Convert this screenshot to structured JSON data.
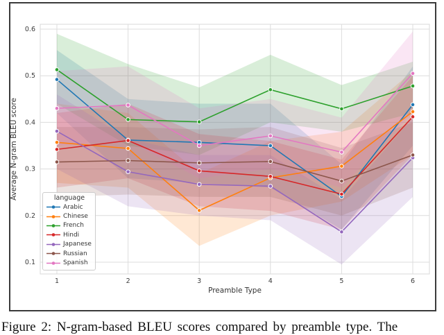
{
  "figure": {
    "caption": "Figure 2:  N-gram-based BLEU scores compared by preamble type.  The"
  },
  "chart_data": {
    "type": "line",
    "title": "",
    "xlabel": "Preamble Type",
    "ylabel": "Average N-gram BLEU score",
    "x": [
      1,
      2,
      3,
      4,
      5,
      6
    ],
    "xlim": [
      0.77,
      6.23
    ],
    "ylim": [
      0.073,
      0.612
    ],
    "yticks": [
      0.1,
      0.2,
      0.3,
      0.4,
      0.5,
      0.6
    ],
    "grid": true,
    "legend_title": "language",
    "legend_position": "lower-left",
    "band_alpha": 0.18,
    "series": [
      {
        "name": "Arabic",
        "color": "#1f77b4",
        "values": [
          0.492,
          0.362,
          0.357,
          0.35,
          0.241,
          0.438
        ],
        "band_low": [
          0.42,
          0.28,
          0.27,
          0.26,
          0.17,
          0.35
        ],
        "band_high": [
          0.555,
          0.45,
          0.44,
          0.44,
          0.31,
          0.52
        ]
      },
      {
        "name": "Chinese",
        "color": "#ff7f0e",
        "values": [
          0.357,
          0.344,
          0.211,
          0.281,
          0.306,
          0.423
        ],
        "band_low": [
          0.27,
          0.26,
          0.135,
          0.2,
          0.23,
          0.33
        ],
        "band_high": [
          0.44,
          0.42,
          0.29,
          0.36,
          0.38,
          0.51
        ]
      },
      {
        "name": "French",
        "color": "#2ca02c",
        "values": [
          0.513,
          0.406,
          0.401,
          0.47,
          0.429,
          0.478
        ],
        "band_low": [
          0.44,
          0.35,
          0.33,
          0.4,
          0.38,
          0.42
        ],
        "band_high": [
          0.59,
          0.525,
          0.475,
          0.545,
          0.48,
          0.53
        ]
      },
      {
        "name": "Hindi",
        "color": "#d62728",
        "values": [
          0.342,
          0.361,
          0.296,
          0.284,
          0.246,
          0.412
        ],
        "band_low": [
          0.26,
          0.28,
          0.22,
          0.21,
          0.17,
          0.33
        ],
        "band_high": [
          0.42,
          0.44,
          0.375,
          0.36,
          0.32,
          0.5
        ]
      },
      {
        "name": "Japanese",
        "color": "#9467bd",
        "values": [
          0.381,
          0.294,
          0.267,
          0.263,
          0.165,
          0.324
        ],
        "band_low": [
          0.3,
          0.22,
          0.2,
          0.19,
          0.095,
          0.24
        ],
        "band_high": [
          0.46,
          0.365,
          0.33,
          0.33,
          0.235,
          0.41
        ]
      },
      {
        "name": "Russian",
        "color": "#8c564b",
        "values": [
          0.315,
          0.318,
          0.313,
          0.316,
          0.274,
          0.33
        ],
        "band_low": [
          0.24,
          0.245,
          0.24,
          0.24,
          0.2,
          0.26
        ],
        "band_high": [
          0.39,
          0.39,
          0.385,
          0.39,
          0.345,
          0.4
        ]
      },
      {
        "name": "Spanish",
        "color": "#e377c2",
        "values": [
          0.43,
          0.437,
          0.35,
          0.371,
          0.336,
          0.505
        ],
        "band_low": [
          0.35,
          0.36,
          0.28,
          0.3,
          0.26,
          0.42
        ],
        "band_high": [
          0.51,
          0.52,
          0.43,
          0.45,
          0.41,
          0.595
        ]
      }
    ]
  }
}
